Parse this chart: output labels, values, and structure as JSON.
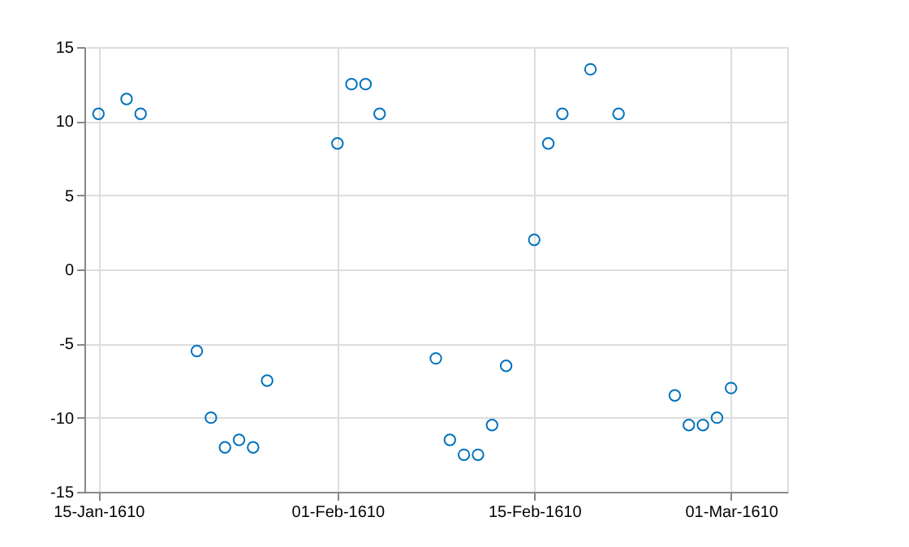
{
  "chart_data": {
    "type": "scatter",
    "marker": "circle",
    "grid": true,
    "x": [
      "1610-01-15",
      "1610-01-17",
      "1610-01-18",
      "1610-01-22",
      "1610-01-23",
      "1610-01-24",
      "1610-01-25",
      "1610-01-26",
      "1610-01-27",
      "1610-02-01",
      "1610-02-02",
      "1610-02-03",
      "1610-02-04",
      "1610-02-08",
      "1610-02-09",
      "1610-02-10",
      "1610-02-11",
      "1610-02-12",
      "1610-02-13",
      "1610-02-15",
      "1610-02-16",
      "1610-02-17",
      "1610-02-19",
      "1610-02-21",
      "1610-02-25",
      "1610-02-26",
      "1610-02-27",
      "1610-02-28",
      "1610-03-01"
    ],
    "series": [
      {
        "color": "#0072bd",
        "values": [
          10.5,
          11.5,
          10.5,
          -5.5,
          -10,
          -12,
          -11.5,
          -12,
          -7.5,
          8.5,
          12.5,
          12.5,
          10.5,
          -6,
          -11.5,
          -12.5,
          -12.5,
          -10.5,
          -6.5,
          2,
          8.5,
          10.5,
          13.5,
          10.5,
          -8.5,
          -10.5,
          -10.5,
          -10,
          -8
        ]
      }
    ],
    "xlim": [
      "1610-01-14",
      "1610-03-05"
    ],
    "xticks": [
      {
        "value": "1610-01-15",
        "label": "15-Jan-1610"
      },
      {
        "value": "1610-02-01",
        "label": "01-Feb-1610"
      },
      {
        "value": "1610-02-15",
        "label": "15-Feb-1610"
      },
      {
        "value": "1610-03-01",
        "label": "01-Mar-1610"
      }
    ],
    "ylim": [
      -15,
      15
    ],
    "yticks": [
      -15,
      -10,
      -5,
      0,
      5,
      10,
      15
    ]
  }
}
